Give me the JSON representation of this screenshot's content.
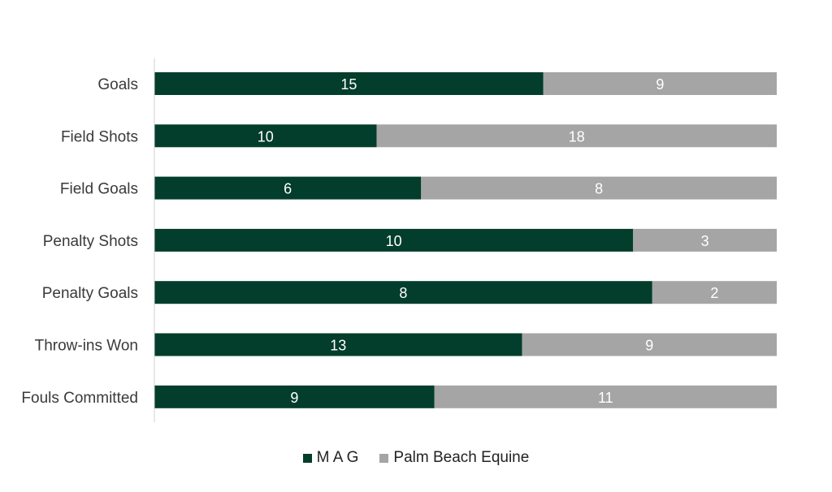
{
  "chart_data": {
    "type": "bar",
    "orientation": "horizontal",
    "stacking": "percent",
    "categories": [
      "Goals",
      "Field Shots",
      "Field Goals",
      "Penalty Shots",
      "Penalty Goals",
      "Throw-ins Won",
      "Fouls Committed"
    ],
    "series": [
      {
        "name": "M A G",
        "values": [
          15,
          10,
          6,
          10,
          8,
          13,
          9
        ],
        "color": "#033d2b"
      },
      {
        "name": "Palm Beach Equine",
        "values": [
          9,
          18,
          8,
          3,
          2,
          9,
          11
        ],
        "color": "#a5a5a5"
      }
    ],
    "data_labels": true,
    "grid": false,
    "legend": "bottom-center"
  }
}
